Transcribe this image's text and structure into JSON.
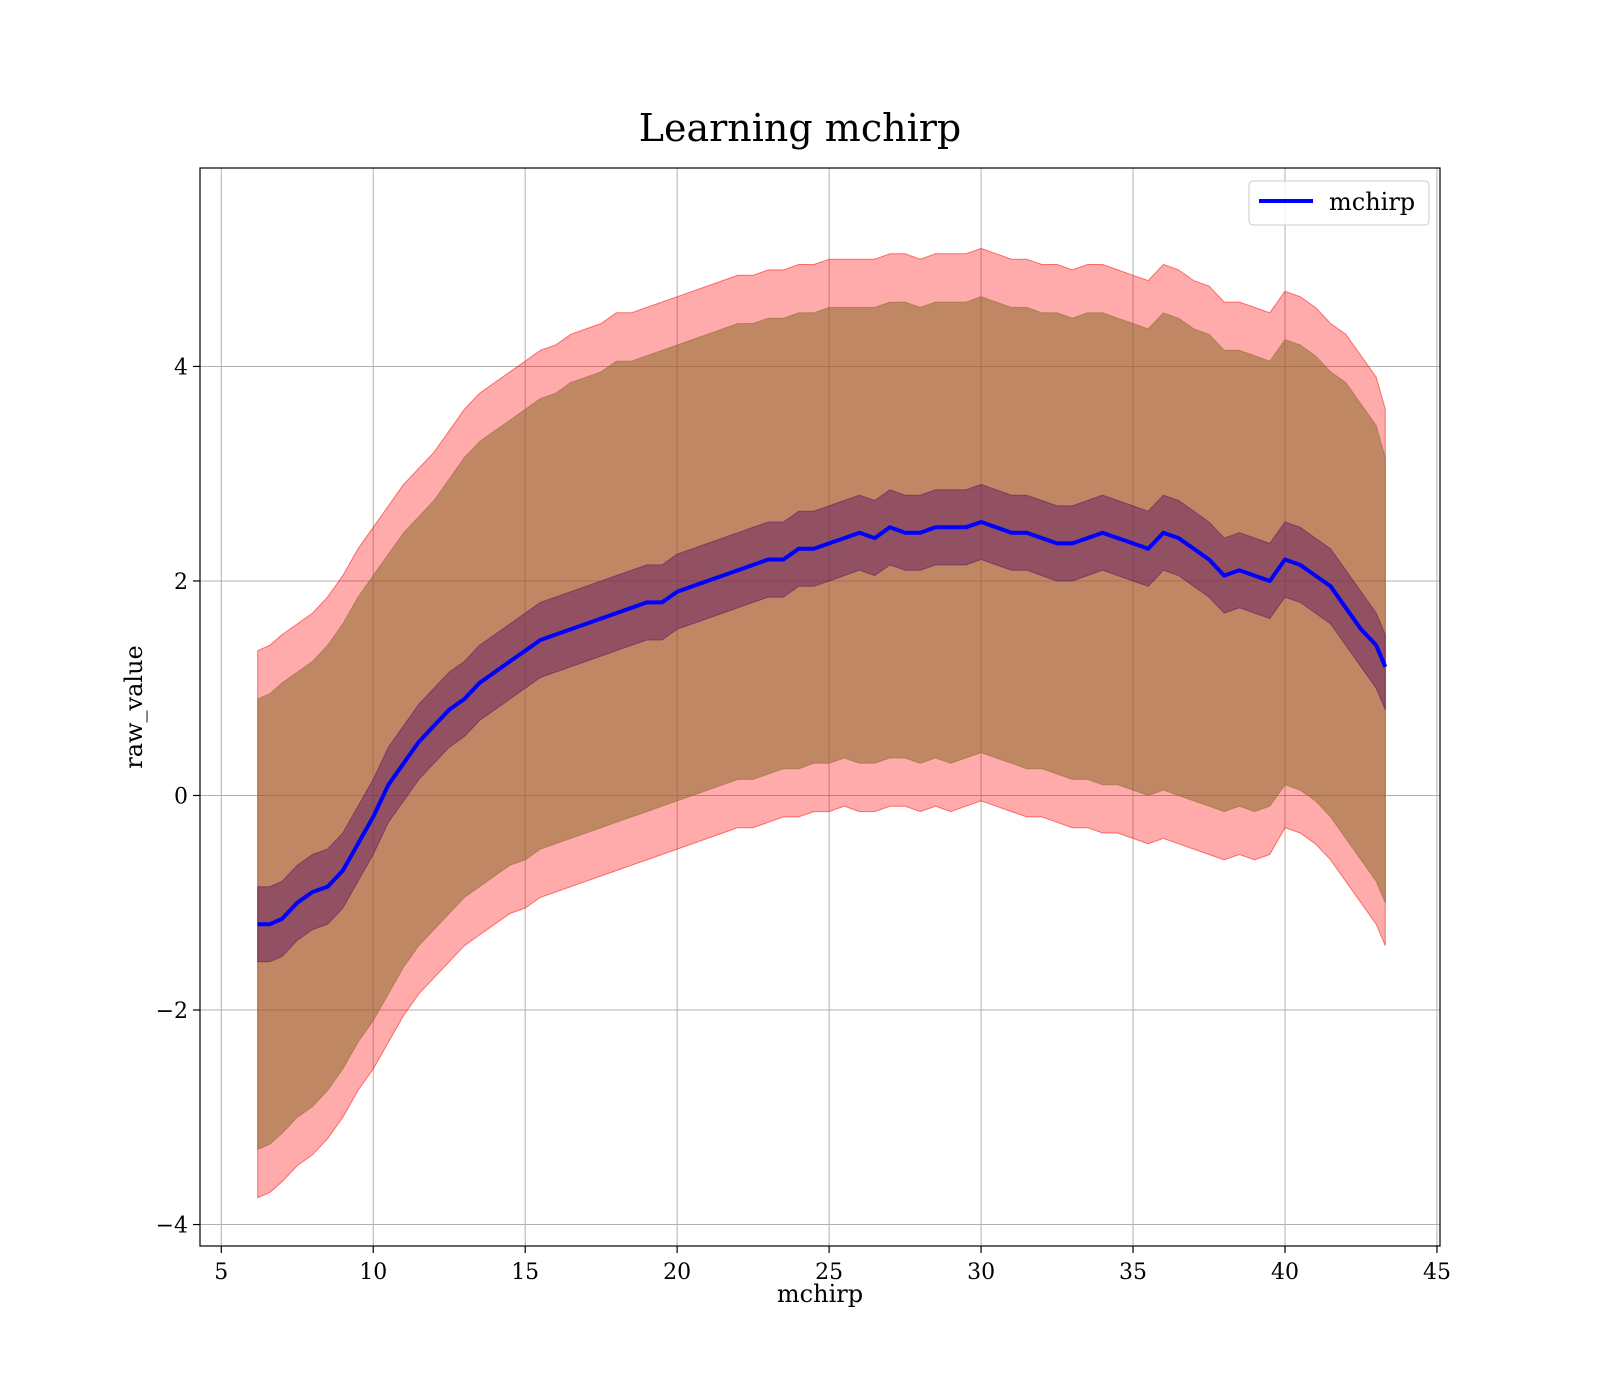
{
  "chart_data": {
    "type": "line",
    "title": "Learning mchirp",
    "xlabel": "mchirp",
    "ylabel": "raw_value",
    "xlim": [
      4.3,
      45.1
    ],
    "ylim": [
      -4.2,
      5.85
    ],
    "xticks": [
      5,
      10,
      15,
      20,
      25,
      30,
      35,
      40,
      45
    ],
    "yticks": [
      -4,
      -2,
      0,
      2,
      4
    ],
    "xtick_labels": [
      "5",
      "10",
      "15",
      "20",
      "25",
      "30",
      "35",
      "40",
      "45"
    ],
    "ytick_labels": [
      "−4",
      "−2",
      "0",
      "2",
      "4"
    ],
    "grid": true,
    "legend": {
      "position": "top-right",
      "entries": [
        "mchirp"
      ]
    },
    "colors": {
      "line": "#0000ff",
      "outer_band": "#ff0000",
      "middle_band": "#8c6a2a",
      "inner_band": "#5a1060",
      "grid": "#b0b0b0"
    },
    "x": [
      6.2,
      6.6,
      7.0,
      7.5,
      8.0,
      8.5,
      9.0,
      9.5,
      10.0,
      10.5,
      11.0,
      11.5,
      12.0,
      12.5,
      13.0,
      13.5,
      14.0,
      14.5,
      15.0,
      15.5,
      16.0,
      16.5,
      17.0,
      17.5,
      18.0,
      18.5,
      19.0,
      19.5,
      20.0,
      20.5,
      21.0,
      21.5,
      22.0,
      22.5,
      23.0,
      23.5,
      24.0,
      24.5,
      25.0,
      25.5,
      26.0,
      26.5,
      27.0,
      27.5,
      28.0,
      28.5,
      29.0,
      29.5,
      30.0,
      30.5,
      31.0,
      31.5,
      32.0,
      32.5,
      33.0,
      33.5,
      34.0,
      34.5,
      35.0,
      35.5,
      36.0,
      36.5,
      37.0,
      37.5,
      38.0,
      38.5,
      39.0,
      39.5,
      40.0,
      40.5,
      41.0,
      41.5,
      42.0,
      42.5,
      43.0,
      43.3
    ],
    "series": [
      {
        "name": "mchirp",
        "values": [
          -1.2,
          -1.2,
          -1.15,
          -1.0,
          -0.9,
          -0.85,
          -0.7,
          -0.45,
          -0.2,
          0.1,
          0.3,
          0.5,
          0.65,
          0.8,
          0.9,
          1.05,
          1.15,
          1.25,
          1.35,
          1.45,
          1.5,
          1.55,
          1.6,
          1.65,
          1.7,
          1.75,
          1.8,
          1.8,
          1.9,
          1.95,
          2.0,
          2.05,
          2.1,
          2.15,
          2.2,
          2.2,
          2.3,
          2.3,
          2.35,
          2.4,
          2.45,
          2.4,
          2.5,
          2.45,
          2.45,
          2.5,
          2.5,
          2.5,
          2.55,
          2.5,
          2.45,
          2.45,
          2.4,
          2.35,
          2.35,
          2.4,
          2.45,
          2.4,
          2.35,
          2.3,
          2.45,
          2.4,
          2.3,
          2.2,
          2.05,
          2.1,
          2.05,
          2.0,
          2.2,
          2.15,
          2.05,
          1.95,
          1.75,
          1.55,
          1.4,
          1.2
        ]
      }
    ],
    "bands": [
      {
        "layer": "outer",
        "lower": [
          -3.75,
          -3.7,
          -3.6,
          -3.45,
          -3.35,
          -3.2,
          -3.0,
          -2.75,
          -2.55,
          -2.3,
          -2.05,
          -1.85,
          -1.7,
          -1.55,
          -1.4,
          -1.3,
          -1.2,
          -1.1,
          -1.05,
          -0.95,
          -0.9,
          -0.85,
          -0.8,
          -0.75,
          -0.7,
          -0.65,
          -0.6,
          -0.55,
          -0.5,
          -0.45,
          -0.4,
          -0.35,
          -0.3,
          -0.3,
          -0.25,
          -0.2,
          -0.2,
          -0.15,
          -0.15,
          -0.1,
          -0.15,
          -0.15,
          -0.1,
          -0.1,
          -0.15,
          -0.1,
          -0.15,
          -0.1,
          -0.05,
          -0.1,
          -0.15,
          -0.2,
          -0.2,
          -0.25,
          -0.3,
          -0.3,
          -0.35,
          -0.35,
          -0.4,
          -0.45,
          -0.4,
          -0.45,
          -0.5,
          -0.55,
          -0.6,
          -0.55,
          -0.6,
          -0.55,
          -0.3,
          -0.35,
          -0.45,
          -0.6,
          -0.8,
          -1.0,
          -1.2,
          -1.4
        ],
        "upper": [
          1.35,
          1.4,
          1.5,
          1.6,
          1.7,
          1.85,
          2.05,
          2.3,
          2.5,
          2.7,
          2.9,
          3.05,
          3.2,
          3.4,
          3.6,
          3.75,
          3.85,
          3.95,
          4.05,
          4.15,
          4.2,
          4.3,
          4.35,
          4.4,
          4.5,
          4.5,
          4.55,
          4.6,
          4.65,
          4.7,
          4.75,
          4.8,
          4.85,
          4.85,
          4.9,
          4.9,
          4.95,
          4.95,
          5.0,
          5.0,
          5.0,
          5.0,
          5.05,
          5.05,
          5.0,
          5.05,
          5.05,
          5.05,
          5.1,
          5.05,
          5.0,
          5.0,
          4.95,
          4.95,
          4.9,
          4.95,
          4.95,
          4.9,
          4.85,
          4.8,
          4.95,
          4.9,
          4.8,
          4.75,
          4.6,
          4.6,
          4.55,
          4.5,
          4.7,
          4.65,
          4.55,
          4.4,
          4.3,
          4.1,
          3.9,
          3.6
        ]
      },
      {
        "layer": "middle",
        "lower": [
          -3.3,
          -3.25,
          -3.15,
          -3.0,
          -2.9,
          -2.75,
          -2.55,
          -2.3,
          -2.1,
          -1.85,
          -1.6,
          -1.4,
          -1.25,
          -1.1,
          -0.95,
          -0.85,
          -0.75,
          -0.65,
          -0.6,
          -0.5,
          -0.45,
          -0.4,
          -0.35,
          -0.3,
          -0.25,
          -0.2,
          -0.15,
          -0.1,
          -0.05,
          0.0,
          0.05,
          0.1,
          0.15,
          0.15,
          0.2,
          0.25,
          0.25,
          0.3,
          0.3,
          0.35,
          0.3,
          0.3,
          0.35,
          0.35,
          0.3,
          0.35,
          0.3,
          0.35,
          0.4,
          0.35,
          0.3,
          0.25,
          0.25,
          0.2,
          0.15,
          0.15,
          0.1,
          0.1,
          0.05,
          0.0,
          0.05,
          0.0,
          -0.05,
          -0.1,
          -0.15,
          -0.1,
          -0.15,
          -0.1,
          0.1,
          0.05,
          -0.05,
          -0.2,
          -0.4,
          -0.6,
          -0.8,
          -1.0
        ],
        "upper": [
          0.9,
          0.95,
          1.05,
          1.15,
          1.25,
          1.4,
          1.6,
          1.85,
          2.05,
          2.25,
          2.45,
          2.6,
          2.75,
          2.95,
          3.15,
          3.3,
          3.4,
          3.5,
          3.6,
          3.7,
          3.75,
          3.85,
          3.9,
          3.95,
          4.05,
          4.05,
          4.1,
          4.15,
          4.2,
          4.25,
          4.3,
          4.35,
          4.4,
          4.4,
          4.45,
          4.45,
          4.5,
          4.5,
          4.55,
          4.55,
          4.55,
          4.55,
          4.6,
          4.6,
          4.55,
          4.6,
          4.6,
          4.6,
          4.65,
          4.6,
          4.55,
          4.55,
          4.5,
          4.5,
          4.45,
          4.5,
          4.5,
          4.45,
          4.4,
          4.35,
          4.5,
          4.45,
          4.35,
          4.3,
          4.15,
          4.15,
          4.1,
          4.05,
          4.25,
          4.2,
          4.1,
          3.95,
          3.85,
          3.65,
          3.45,
          3.15
        ]
      },
      {
        "layer": "inner",
        "lower": [
          -1.55,
          -1.55,
          -1.5,
          -1.35,
          -1.25,
          -1.2,
          -1.05,
          -0.8,
          -0.55,
          -0.25,
          -0.05,
          0.15,
          0.3,
          0.45,
          0.55,
          0.7,
          0.8,
          0.9,
          1.0,
          1.1,
          1.15,
          1.2,
          1.25,
          1.3,
          1.35,
          1.4,
          1.45,
          1.45,
          1.55,
          1.6,
          1.65,
          1.7,
          1.75,
          1.8,
          1.85,
          1.85,
          1.95,
          1.95,
          2.0,
          2.05,
          2.1,
          2.05,
          2.15,
          2.1,
          2.1,
          2.15,
          2.15,
          2.15,
          2.2,
          2.15,
          2.1,
          2.1,
          2.05,
          2.0,
          2.0,
          2.05,
          2.1,
          2.05,
          2.0,
          1.95,
          2.1,
          2.05,
          1.95,
          1.85,
          1.7,
          1.75,
          1.7,
          1.65,
          1.85,
          1.8,
          1.7,
          1.6,
          1.4,
          1.2,
          1.0,
          0.8
        ],
        "upper": [
          -0.85,
          -0.85,
          -0.8,
          -0.65,
          -0.55,
          -0.5,
          -0.35,
          -0.1,
          0.15,
          0.45,
          0.65,
          0.85,
          1.0,
          1.15,
          1.25,
          1.4,
          1.5,
          1.6,
          1.7,
          1.8,
          1.85,
          1.9,
          1.95,
          2.0,
          2.05,
          2.1,
          2.15,
          2.15,
          2.25,
          2.3,
          2.35,
          2.4,
          2.45,
          2.5,
          2.55,
          2.55,
          2.65,
          2.65,
          2.7,
          2.75,
          2.8,
          2.75,
          2.85,
          2.8,
          2.8,
          2.85,
          2.85,
          2.85,
          2.9,
          2.85,
          2.8,
          2.8,
          2.75,
          2.7,
          2.7,
          2.75,
          2.8,
          2.75,
          2.7,
          2.65,
          2.8,
          2.75,
          2.65,
          2.55,
          2.4,
          2.45,
          2.4,
          2.35,
          2.55,
          2.5,
          2.4,
          2.3,
          2.1,
          1.9,
          1.7,
          1.5
        ]
      }
    ]
  }
}
